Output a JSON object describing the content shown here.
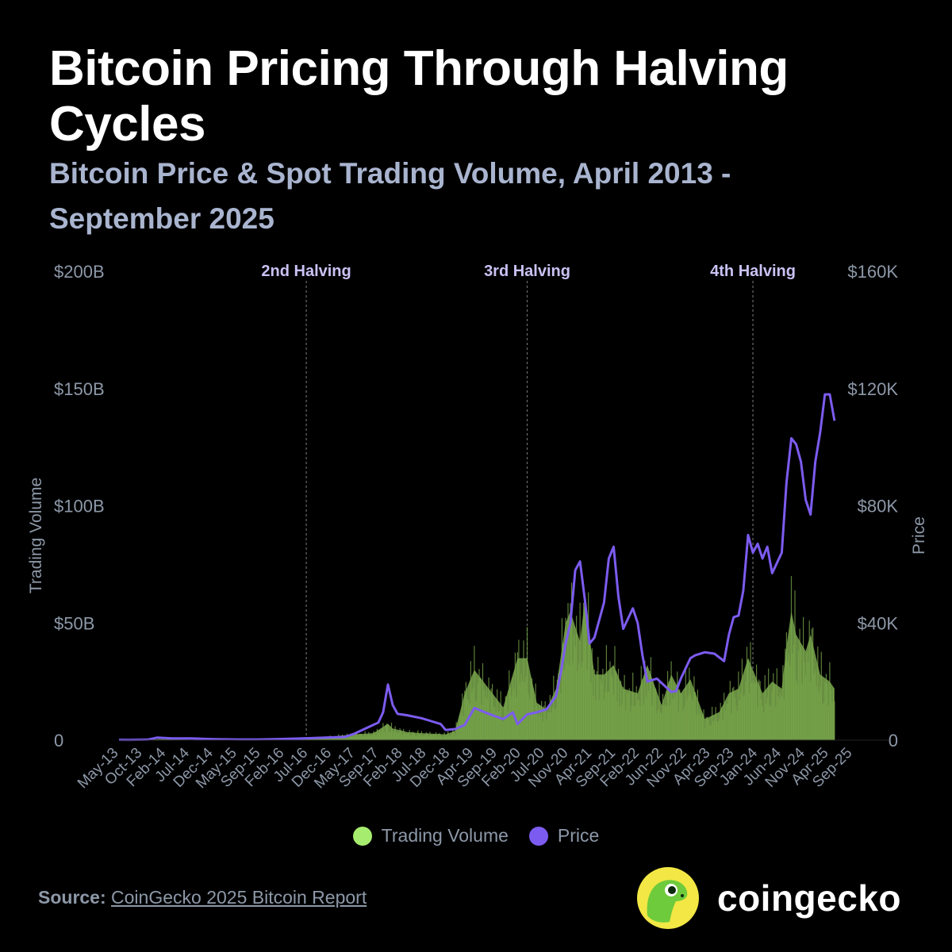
{
  "title": "Bitcoin Pricing Through Halving Cycles",
  "subtitle": "Bitcoin Price & Spot Trading Volume, April 2013 - September 2025",
  "colors": {
    "background": "#000000",
    "volume": "#7aa84c",
    "volume_legend": "#a6ec6e",
    "price": "#7c5cf0",
    "axis_text": "#8d98a8",
    "halving_label": "#c9c2f4"
  },
  "legend": {
    "volume_label": "Trading Volume",
    "price_label": "Price"
  },
  "source": {
    "label": "Source:",
    "link_text": "CoinGecko 2025 Bitcoin Report"
  },
  "brand": {
    "name": "coingecko",
    "logo_icon": "gecko-logo-icon"
  },
  "chart_data": {
    "type": "area",
    "title": "",
    "xlabel": "",
    "ylabel_left": "Trading Volume",
    "ylabel_right": "Price",
    "left_axis": {
      "ylim": [
        0,
        200
      ],
      "ticks": [
        0,
        50,
        100,
        150,
        200
      ],
      "tick_labels": [
        "0",
        "$50B",
        "$100B",
        "$150B",
        "$200B"
      ]
    },
    "right_axis": {
      "ylim": [
        0,
        160000
      ],
      "ticks": [
        0,
        40000,
        80000,
        120000,
        160000
      ],
      "tick_labels": [
        "0",
        "$40K",
        "$80K",
        "$120K",
        "$160K"
      ]
    },
    "x_tick_labels": [
      "May-13",
      "Oct-13",
      "Feb-14",
      "Jul-14",
      "Dec-14",
      "May-15",
      "Sep-15",
      "Feb-16",
      "Jul-16",
      "Dec-16",
      "May-17",
      "Sep-17",
      "Feb-18",
      "Jul-18",
      "Dec-18",
      "Apr-19",
      "Sep-19",
      "Feb-20",
      "Jul-20",
      "Nov-20",
      "Apr-21",
      "Sep-21",
      "Feb-22",
      "Jun-22",
      "Nov-22",
      "Apr-23",
      "Sep-23",
      "Jan-24",
      "Jun-24",
      "Nov-24",
      "Apr-25",
      "Sep-25"
    ],
    "halvings": [
      {
        "label": "2nd Halving",
        "x": "Jul-16"
      },
      {
        "label": "3rd Halving",
        "x": "May-20"
      },
      {
        "label": "4th Halving",
        "x": "Apr-24"
      }
    ],
    "grid": false,
    "legend_position": "bottom-center",
    "series": [
      {
        "name": "Price",
        "axis": "right",
        "x": [
          "Apr-13",
          "Jun-13",
          "Oct-13",
          "Dec-13",
          "Mar-14",
          "Jul-14",
          "Dec-14",
          "May-15",
          "Sep-15",
          "Feb-16",
          "Jul-16",
          "Dec-16",
          "Mar-17",
          "May-17",
          "Aug-17",
          "Oct-17",
          "Nov-17",
          "Dec-17",
          "Jan-18",
          "Feb-18",
          "Apr-18",
          "Jul-18",
          "Sep-18",
          "Nov-18",
          "Dec-18",
          "Feb-19",
          "Apr-19",
          "Jun-19",
          "Sep-19",
          "Dec-19",
          "Feb-20",
          "Mar-20",
          "May-20",
          "Jul-20",
          "Sep-20",
          "Nov-20",
          "Dec-20",
          "Jan-21",
          "Feb-21",
          "Mar-21",
          "Apr-21",
          "May-21",
          "Jun-21",
          "Jul-21",
          "Sep-21",
          "Oct-21",
          "Nov-21",
          "Dec-21",
          "Jan-22",
          "Mar-22",
          "Apr-22",
          "May-22",
          "Jun-22",
          "Aug-22",
          "Sep-22",
          "Nov-22",
          "Dec-22",
          "Jan-23",
          "Mar-23",
          "Apr-23",
          "Jun-23",
          "Aug-23",
          "Oct-23",
          "Nov-23",
          "Dec-23",
          "Jan-24",
          "Feb-24",
          "Mar-24",
          "Apr-24",
          "May-24",
          "Jun-24",
          "Jul-24",
          "Aug-24",
          "Oct-24",
          "Nov-24",
          "Dec-24",
          "Jan-25",
          "Feb-25",
          "Mar-25",
          "Apr-25",
          "May-25",
          "Jun-25",
          "Jul-25",
          "Aug-25",
          "Sep-25"
        ],
        "values": [
          130,
          120,
          200,
          900,
          600,
          600,
          350,
          240,
          240,
          400,
          650,
          950,
          1100,
          2200,
          4500,
          6000,
          9500,
          19000,
          12000,
          9000,
          8500,
          7500,
          6500,
          5500,
          3500,
          3800,
          5200,
          11000,
          9000,
          7200,
          9500,
          5500,
          8800,
          9500,
          10500,
          15000,
          23000,
          33000,
          40000,
          58000,
          61000,
          48000,
          33000,
          35000,
          47000,
          62000,
          66000,
          49000,
          38000,
          45000,
          40000,
          29000,
          20000,
          21000,
          19500,
          16500,
          16700,
          21000,
          28000,
          29000,
          30000,
          29500,
          27000,
          36000,
          42000,
          42500,
          51000,
          70000,
          64000,
          67000,
          62000,
          66000,
          57000,
          64000,
          88000,
          103000,
          101000,
          95000,
          82000,
          77000,
          95000,
          105000,
          118000,
          118000,
          109000
        ]
      },
      {
        "name": "Trading Volume",
        "axis": "left",
        "x": [
          "Apr-13",
          "Oct-13",
          "Dec-13",
          "Jul-14",
          "May-15",
          "Feb-16",
          "Jul-16",
          "Dec-16",
          "May-17",
          "Sep-17",
          "Dec-17",
          "Jan-18",
          "Apr-18",
          "Jul-18",
          "Dec-18",
          "Feb-19",
          "Apr-19",
          "Jun-19",
          "Sep-19",
          "Dec-19",
          "Mar-20",
          "May-20",
          "Jul-20",
          "Sep-20",
          "Nov-20",
          "Jan-21",
          "Feb-21",
          "Apr-21",
          "May-21",
          "Jul-21",
          "Sep-21",
          "Nov-21",
          "Jan-22",
          "Apr-22",
          "Jun-22",
          "Sep-22",
          "Nov-22",
          "Jan-23",
          "Mar-23",
          "Jun-23",
          "Sep-23",
          "Nov-23",
          "Jan-24",
          "Mar-24",
          "Apr-24",
          "Jun-24",
          "Aug-24",
          "Oct-24",
          "Nov-24",
          "Dec-24",
          "Jan-25",
          "Mar-25",
          "Apr-25",
          "Jun-25",
          "Aug-25",
          "Sep-25"
        ],
        "values": [
          0.1,
          0.1,
          0.4,
          0.2,
          0.2,
          0.3,
          0.6,
          1.5,
          2.5,
          3,
          7,
          5,
          3.5,
          3,
          2.5,
          4,
          20,
          30,
          22,
          14,
          35,
          35,
          16,
          13,
          22,
          50,
          55,
          42,
          60,
          28,
          28,
          32,
          22,
          20,
          32,
          15,
          28,
          20,
          26,
          9,
          12,
          20,
          22,
          35,
          30,
          20,
          25,
          22,
          40,
          55,
          45,
          38,
          45,
          28,
          25,
          22
        ]
      }
    ]
  }
}
